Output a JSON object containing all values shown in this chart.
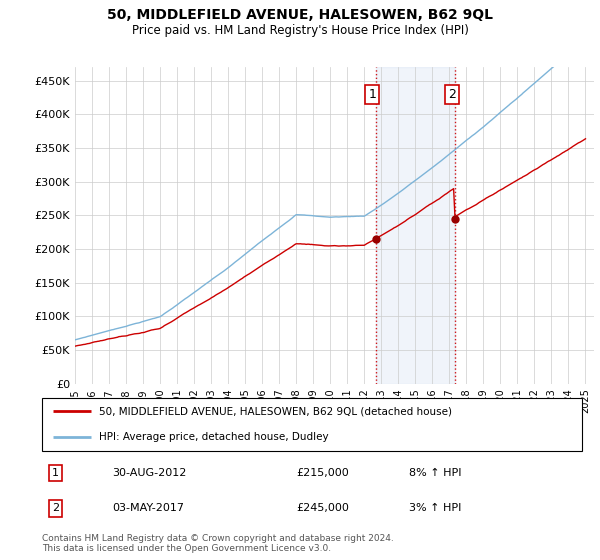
{
  "title": "50, MIDDLEFIELD AVENUE, HALESOWEN, B62 9QL",
  "subtitle": "Price paid vs. HM Land Registry's House Price Index (HPI)",
  "ylim": [
    0,
    470000
  ],
  "yticks": [
    0,
    50000,
    100000,
    150000,
    200000,
    250000,
    300000,
    350000,
    400000,
    450000
  ],
  "ytick_labels": [
    "£0",
    "£50K",
    "£100K",
    "£150K",
    "£200K",
    "£250K",
    "£300K",
    "£350K",
    "£400K",
    "£450K"
  ],
  "hpi_color": "#7db4d8",
  "price_color": "#cc0000",
  "sale1_date": 2012.67,
  "sale1_price": 215000,
  "sale2_date": 2017.34,
  "sale2_price": 245000,
  "legend_line1": "50, MIDDLEFIELD AVENUE, HALESOWEN, B62 9QL (detached house)",
  "legend_line2": "HPI: Average price, detached house, Dudley",
  "annotation1_num": "1",
  "annotation1_date": "30-AUG-2012",
  "annotation1_price": "£215,000",
  "annotation1_hpi": "8% ↑ HPI",
  "annotation2_num": "2",
  "annotation2_date": "03-MAY-2017",
  "annotation2_price": "£245,000",
  "annotation2_hpi": "3% ↑ HPI",
  "footer": "Contains HM Land Registry data © Crown copyright and database right 2024.\nThis data is licensed under the Open Government Licence v3.0."
}
